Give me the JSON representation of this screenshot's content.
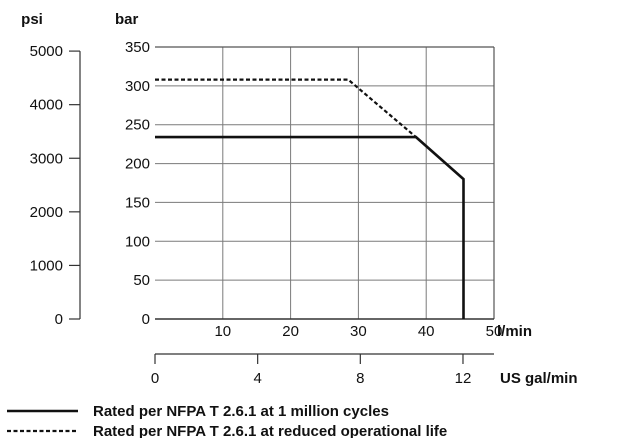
{
  "chart_data": {
    "type": "line",
    "x_primary": {
      "unit": "l/min",
      "range": [
        0,
        50
      ],
      "ticks": [
        10,
        20,
        30,
        40,
        50
      ]
    },
    "x_secondary": {
      "unit": "US gal/min",
      "ticks": [
        0,
        4,
        8,
        12
      ]
    },
    "y_primary": {
      "unit": "bar",
      "range": [
        0,
        350
      ],
      "ticks": [
        0,
        50,
        100,
        150,
        200,
        250,
        300,
        350
      ]
    },
    "y_secondary": {
      "unit": "psi",
      "ticks": [
        0,
        1000,
        2000,
        3000,
        4000,
        5000
      ]
    },
    "grid": true,
    "legend_position": "bottom-left",
    "series": [
      {
        "name": "Rated per NFPA T 2.6.1 at 1 million cycles",
        "style": "solid",
        "points": [
          [
            0,
            234
          ],
          [
            38.5,
            234
          ],
          [
            45.5,
            180
          ],
          [
            45.5,
            0
          ]
        ]
      },
      {
        "name": "Rated per NFPA T 2.6.1 at reduced operational life",
        "style": "dashed",
        "points": [
          [
            0,
            308
          ],
          [
            28.5,
            308
          ],
          [
            38.5,
            234
          ]
        ]
      }
    ]
  }
}
